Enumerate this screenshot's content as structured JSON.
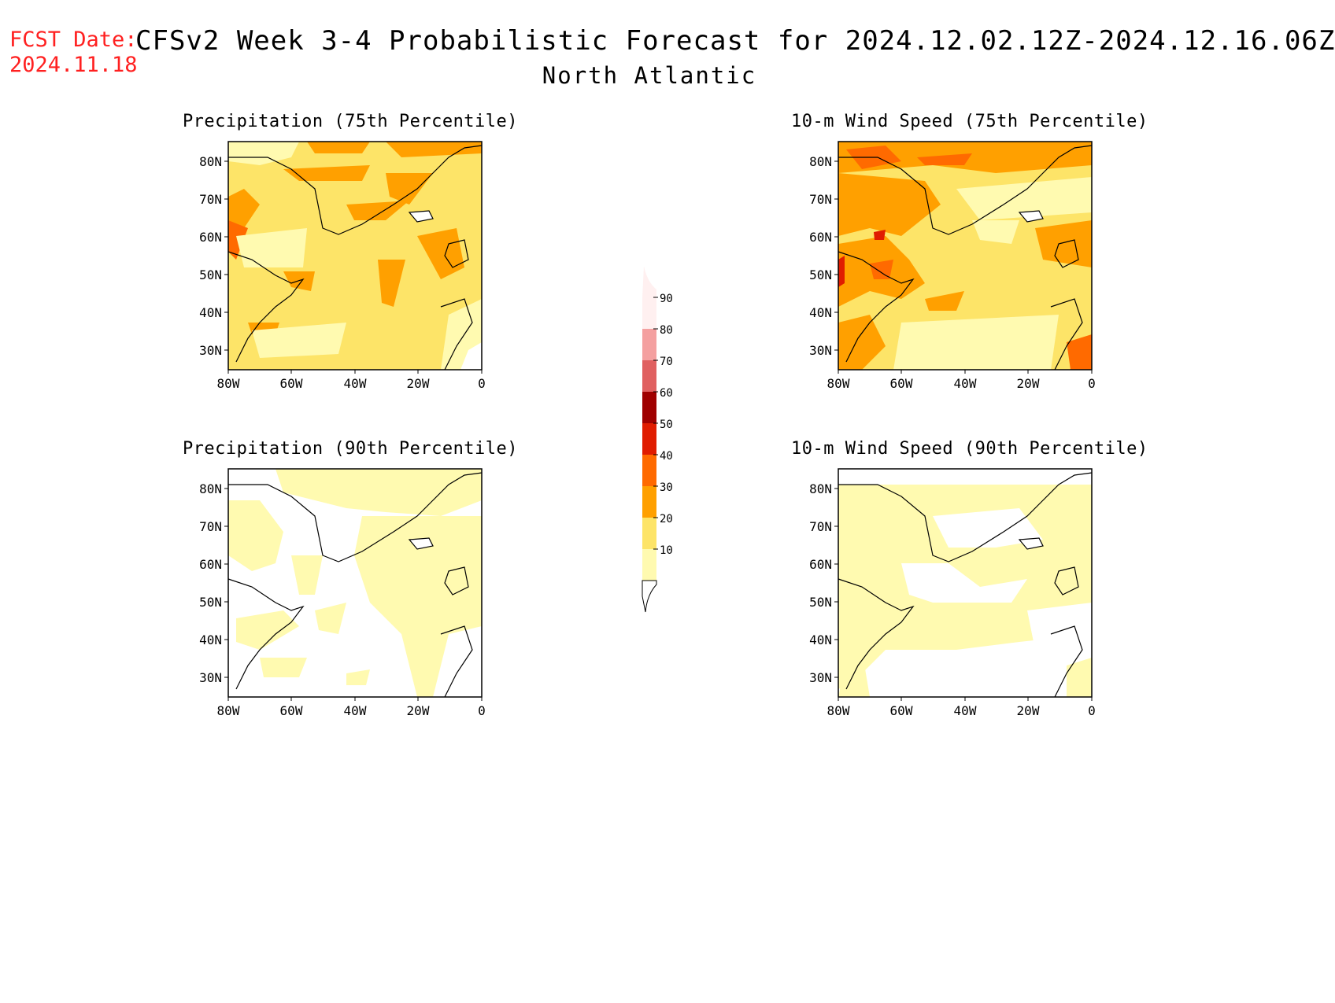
{
  "header": {
    "fcst_label": "FCST Date:",
    "fcst_date": "2024.11.18",
    "title": "CFSv2 Week 3-4 Probabilistic Forecast for 2024.12.02.12Z-2024.12.16.06Z",
    "region": "North Atlantic"
  },
  "panels": [
    {
      "title": "Precipitation (75th Percentile)",
      "fill": "p75precip"
    },
    {
      "title": "10-m Wind Speed (75th Percentile)",
      "fill": "p75wind"
    },
    {
      "title": "Precipitation (90th Percentile)",
      "fill": "p90precip"
    },
    {
      "title": "10-m Wind Speed (90th Percentile)",
      "fill": "p90wind"
    }
  ],
  "axes": {
    "lat_labels": [
      "80N",
      "70N",
      "60N",
      "50N",
      "40N",
      "30N"
    ],
    "lon_labels": [
      "80W",
      "60W",
      "40W",
      "20W",
      "0"
    ]
  },
  "colorbar": {
    "labels": [
      "90",
      "80",
      "70",
      "60",
      "50",
      "40",
      "30",
      "20",
      "10"
    ],
    "colors": [
      "#fff0f0",
      "#f4a0a0",
      "#e06060",
      "#a00000",
      "#e01c00",
      "#ff6a00",
      "#ffa000",
      "#fde468",
      "#fffab0"
    ]
  }
}
